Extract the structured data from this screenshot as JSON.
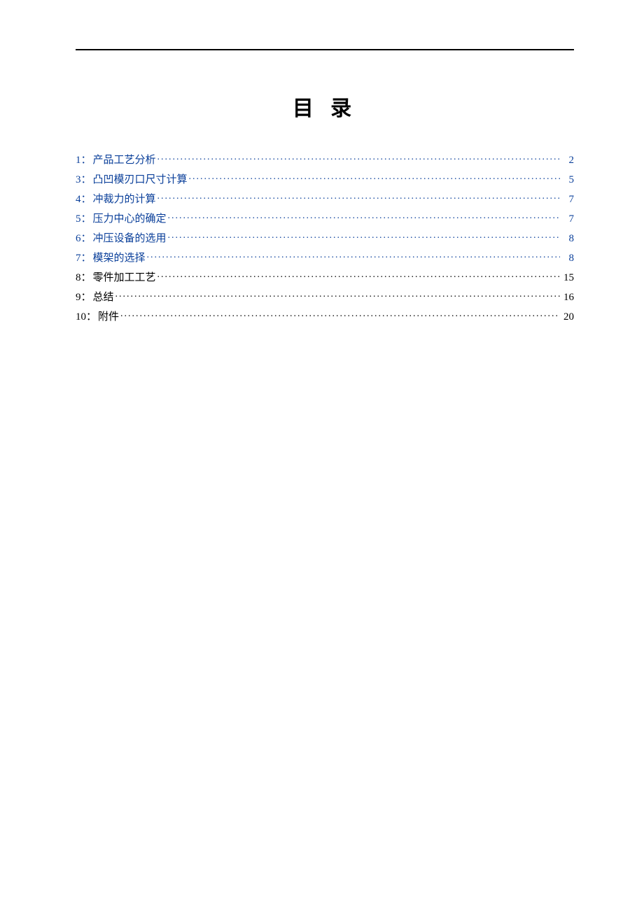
{
  "title": "目 录",
  "link_color": "#0a3f9a",
  "text_color": "#000000",
  "background_color": "#ffffff",
  "title_fontsize": 30,
  "toc_fontsize": 15,
  "toc": [
    {
      "num": "1",
      "colon": "：",
      "label": "产品工艺分析",
      "page": "2",
      "is_link": true
    },
    {
      "num": "3",
      "colon": "：",
      "label": "凸凹模刃口尺寸计算",
      "page": "5",
      "is_link": true
    },
    {
      "num": "4",
      "colon": "：",
      "label": "冲裁力的计算",
      "page": "7",
      "is_link": true
    },
    {
      "num": "5",
      "colon": "：",
      "label": "压力中心的确定",
      "page": "7",
      "is_link": true
    },
    {
      "num": "6",
      "colon": "：",
      "label": "冲压设备的选用",
      "page": "8",
      "is_link": true
    },
    {
      "num": "7",
      "colon": "：",
      "label": "模架的选择",
      "page": "8",
      "is_link": true
    },
    {
      "num": "8",
      "colon": "：",
      "label": "零件加工工艺",
      "page": "15",
      "is_link": false
    },
    {
      "num": "9",
      "colon": "：",
      "label": "总结",
      "page": "16",
      "is_link": false
    },
    {
      "num": "10",
      "colon": "：",
      "label": "附件",
      "page": "20",
      "is_link": false
    }
  ]
}
